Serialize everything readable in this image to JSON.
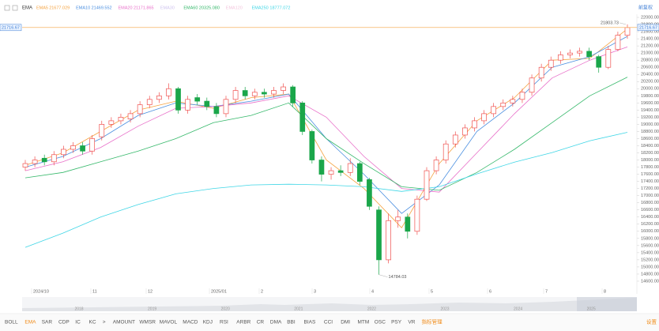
{
  "chart_data": {
    "type": "candlestick",
    "indicator": "EMA",
    "adjust_mode": "前复权",
    "up_color": "#f0514f",
    "down_color": "#1aa64a",
    "current_price_color": "#f5a340",
    "ylim": [
      14400,
      22200
    ],
    "yticks": [
      {
        "value": 14600,
        "label": "14600.00"
      },
      {
        "value": 14800,
        "label": "14800.00"
      },
      {
        "value": 15000,
        "label": "15000.00"
      },
      {
        "value": 15200,
        "label": "15200.00"
      },
      {
        "value": 15400,
        "label": "15400.00"
      },
      {
        "value": 15600,
        "label": "15600.00"
      },
      {
        "value": 15800,
        "label": "15800.00"
      },
      {
        "value": 16000,
        "label": "16000.00"
      },
      {
        "value": 16200,
        "label": "16200.00"
      },
      {
        "value": 16400,
        "label": "16400.00"
      },
      {
        "value": 16600,
        "label": "16600.00"
      },
      {
        "value": 16800,
        "label": "16800.00"
      },
      {
        "value": 17000,
        "label": "17000.00"
      },
      {
        "value": 17200,
        "label": "17200.00"
      },
      {
        "value": 17400,
        "label": "17400.00"
      },
      {
        "value": 17600,
        "label": "17600.00"
      },
      {
        "value": 17800,
        "label": "17800.00"
      },
      {
        "value": 18000,
        "label": "18000.00"
      },
      {
        "value": 18200,
        "label": "18200.00"
      },
      {
        "value": 18400,
        "label": "18400.00"
      },
      {
        "value": 18600,
        "label": "18600.00"
      },
      {
        "value": 18800,
        "label": "18800.00"
      },
      {
        "value": 19000,
        "label": "19000.00"
      },
      {
        "value": 19200,
        "label": "19200.00"
      },
      {
        "value": 19400,
        "label": "19400.00"
      },
      {
        "value": 19600,
        "label": "19600.00"
      },
      {
        "value": 19800,
        "label": "19800.00"
      },
      {
        "value": 20000,
        "label": "20000.00"
      },
      {
        "value": 20200,
        "label": "20200.00"
      },
      {
        "value": 20400,
        "label": "20400.00"
      },
      {
        "value": 20600,
        "label": "20600.00"
      },
      {
        "value": 20800,
        "label": "20800.00"
      },
      {
        "value": 21000,
        "label": "21000.00"
      },
      {
        "value": 21200,
        "label": "21200.00"
      },
      {
        "value": 21400,
        "label": "21400.00"
      },
      {
        "value": 21600,
        "label": "21600.00"
      },
      {
        "value": 21800,
        "label": "21800.00"
      },
      {
        "value": 22000,
        "label": "22000.00"
      }
    ],
    "x_labels": [
      "2024/10",
      "11",
      "12",
      "2025/01",
      "2",
      "3",
      "4",
      "5",
      "6",
      "7",
      "8"
    ],
    "candles": {
      "open": [
        17800,
        17900,
        18050,
        17950,
        18150,
        18300,
        18400,
        18250,
        18650,
        19000,
        19100,
        19150,
        19300,
        19550,
        19700,
        19800,
        20000,
        19400,
        19750,
        19650,
        19500,
        19300,
        19700,
        19950,
        19800,
        19900,
        19850,
        19950,
        20050,
        19600,
        18800,
        18000,
        17600,
        17700,
        17650,
        17900,
        17450,
        16600,
        15200,
        16300,
        16400,
        16000,
        16900,
        17700,
        18000,
        18450,
        18700,
        18900,
        19100,
        19300,
        19500,
        19600,
        19700,
        19900,
        20300,
        20600,
        20800,
        20950,
        21000,
        21050,
        20900,
        20600,
        21100,
        21500
      ],
      "high": [
        18000,
        18100,
        18150,
        18250,
        18400,
        18500,
        18500,
        18700,
        19100,
        19200,
        19300,
        19400,
        19650,
        19800,
        19900,
        20150,
        20050,
        19800,
        19850,
        19750,
        19600,
        19800,
        20050,
        20050,
        20000,
        20000,
        20050,
        20150,
        20100,
        19650,
        18850,
        18100,
        17800,
        17850,
        18050,
        17950,
        17500,
        16700,
        16500,
        16600,
        16500,
        17000,
        17800,
        18100,
        18550,
        18800,
        19000,
        19200,
        19400,
        19600,
        19700,
        19800,
        20000,
        20400,
        20700,
        20900,
        21050,
        21100,
        21150,
        21150,
        20950,
        21200,
        21600,
        21803.73
      ],
      "low": [
        17700,
        17800,
        17850,
        17850,
        18050,
        18200,
        18150,
        18150,
        18550,
        18900,
        19000,
        19050,
        19200,
        19450,
        19600,
        19700,
        19300,
        19300,
        19550,
        19400,
        19200,
        19200,
        19600,
        19700,
        19700,
        19750,
        19750,
        19850,
        19500,
        18700,
        17900,
        17400,
        17450,
        17550,
        17550,
        17300,
        16600,
        14784.03,
        15100,
        16100,
        15800,
        15900,
        16850,
        17600,
        17900,
        18350,
        18600,
        18800,
        19000,
        19200,
        19400,
        19500,
        19600,
        19800,
        20200,
        20500,
        20700,
        20850,
        20900,
        20800,
        20450,
        20550,
        21050,
        21400
      ],
      "close": [
        17900,
        18000,
        17950,
        18150,
        18300,
        18400,
        18250,
        18600,
        19000,
        19100,
        19200,
        19300,
        19550,
        19700,
        19800,
        20000,
        19400,
        19700,
        19650,
        19500,
        19300,
        19700,
        19950,
        19800,
        19900,
        19850,
        19950,
        20050,
        19600,
        18800,
        18000,
        17600,
        17700,
        17650,
        17900,
        17400,
        16700,
        15200,
        16300,
        16400,
        16000,
        16900,
        17700,
        18000,
        18450,
        18700,
        18900,
        19100,
        19300,
        19500,
        19600,
        19700,
        19900,
        20300,
        20600,
        20800,
        20950,
        21000,
        21050,
        20900,
        20600,
        21100,
        21500,
        21716.67
      ]
    },
    "series": [
      {
        "name": "EMA5",
        "color": "#f5a340",
        "legend_value": "21677.029",
        "values": [
          17850,
          18200,
          18800,
          19400,
          19650,
          19450,
          19750,
          19850,
          18000,
          17200,
          16100,
          17900,
          19100,
          19750,
          20800,
          20850,
          21677.029
        ]
      },
      {
        "name": "EMA10",
        "color": "#4a8fe0",
        "legend_value": "21469.552",
        "values": [
          17800,
          18100,
          18600,
          19250,
          19600,
          19500,
          19650,
          19850,
          18600,
          17600,
          16500,
          17300,
          18800,
          19600,
          20600,
          20900,
          21469.552
        ]
      },
      {
        "name": "EMA20",
        "color": "#e86fc9",
        "legend_value": "21171.865",
        "values": [
          17700,
          17950,
          18350,
          18950,
          19450,
          19500,
          19600,
          19800,
          19200,
          18100,
          17200,
          17100,
          18200,
          19300,
          20300,
          20800,
          21171.865
        ]
      },
      {
        "name": "EMA30",
        "color": "#cfc3ef",
        "visible": false
      },
      {
        "name": "EMA60",
        "color": "#35b86a",
        "legend_value": "20325.080",
        "values": [
          17500,
          17650,
          17950,
          18250,
          18600,
          19050,
          19250,
          19600,
          18600,
          17900,
          17250,
          17150,
          17650,
          18300,
          19050,
          19800,
          20325.08
        ]
      },
      {
        "name": "EMA120",
        "color": "#f3c6dd",
        "visible": false
      },
      {
        "name": "EMA250",
        "color": "#3fd6e6",
        "legend_value": "18777.072",
        "values": [
          15550,
          15950,
          16400,
          16750,
          17050,
          17200,
          17300,
          17320,
          17300,
          17250,
          17120,
          17250,
          17610,
          17940,
          18210,
          18540,
          18777.072
        ]
      }
    ],
    "navigator_years": [
      "2018",
      "2019",
      "2020",
      "2021",
      "2022",
      "2023",
      "2024",
      "2025"
    ],
    "toolbar": {
      "tabs": [
        "BOLL",
        "EMA",
        "SAR",
        "CDP",
        "IC",
        "KC",
        ">",
        "AMOUNT",
        "WMSR",
        "MAVOL",
        "MACD",
        "KDJ",
        "RSI",
        "ARBR",
        "CR",
        "DMA",
        "BBI",
        "BIAS",
        "CCI",
        "DMI",
        "MTM",
        "OSC",
        "PSY",
        "VR"
      ],
      "active": 1,
      "manage": "指标管理",
      "settings": "设置"
    }
  }
}
